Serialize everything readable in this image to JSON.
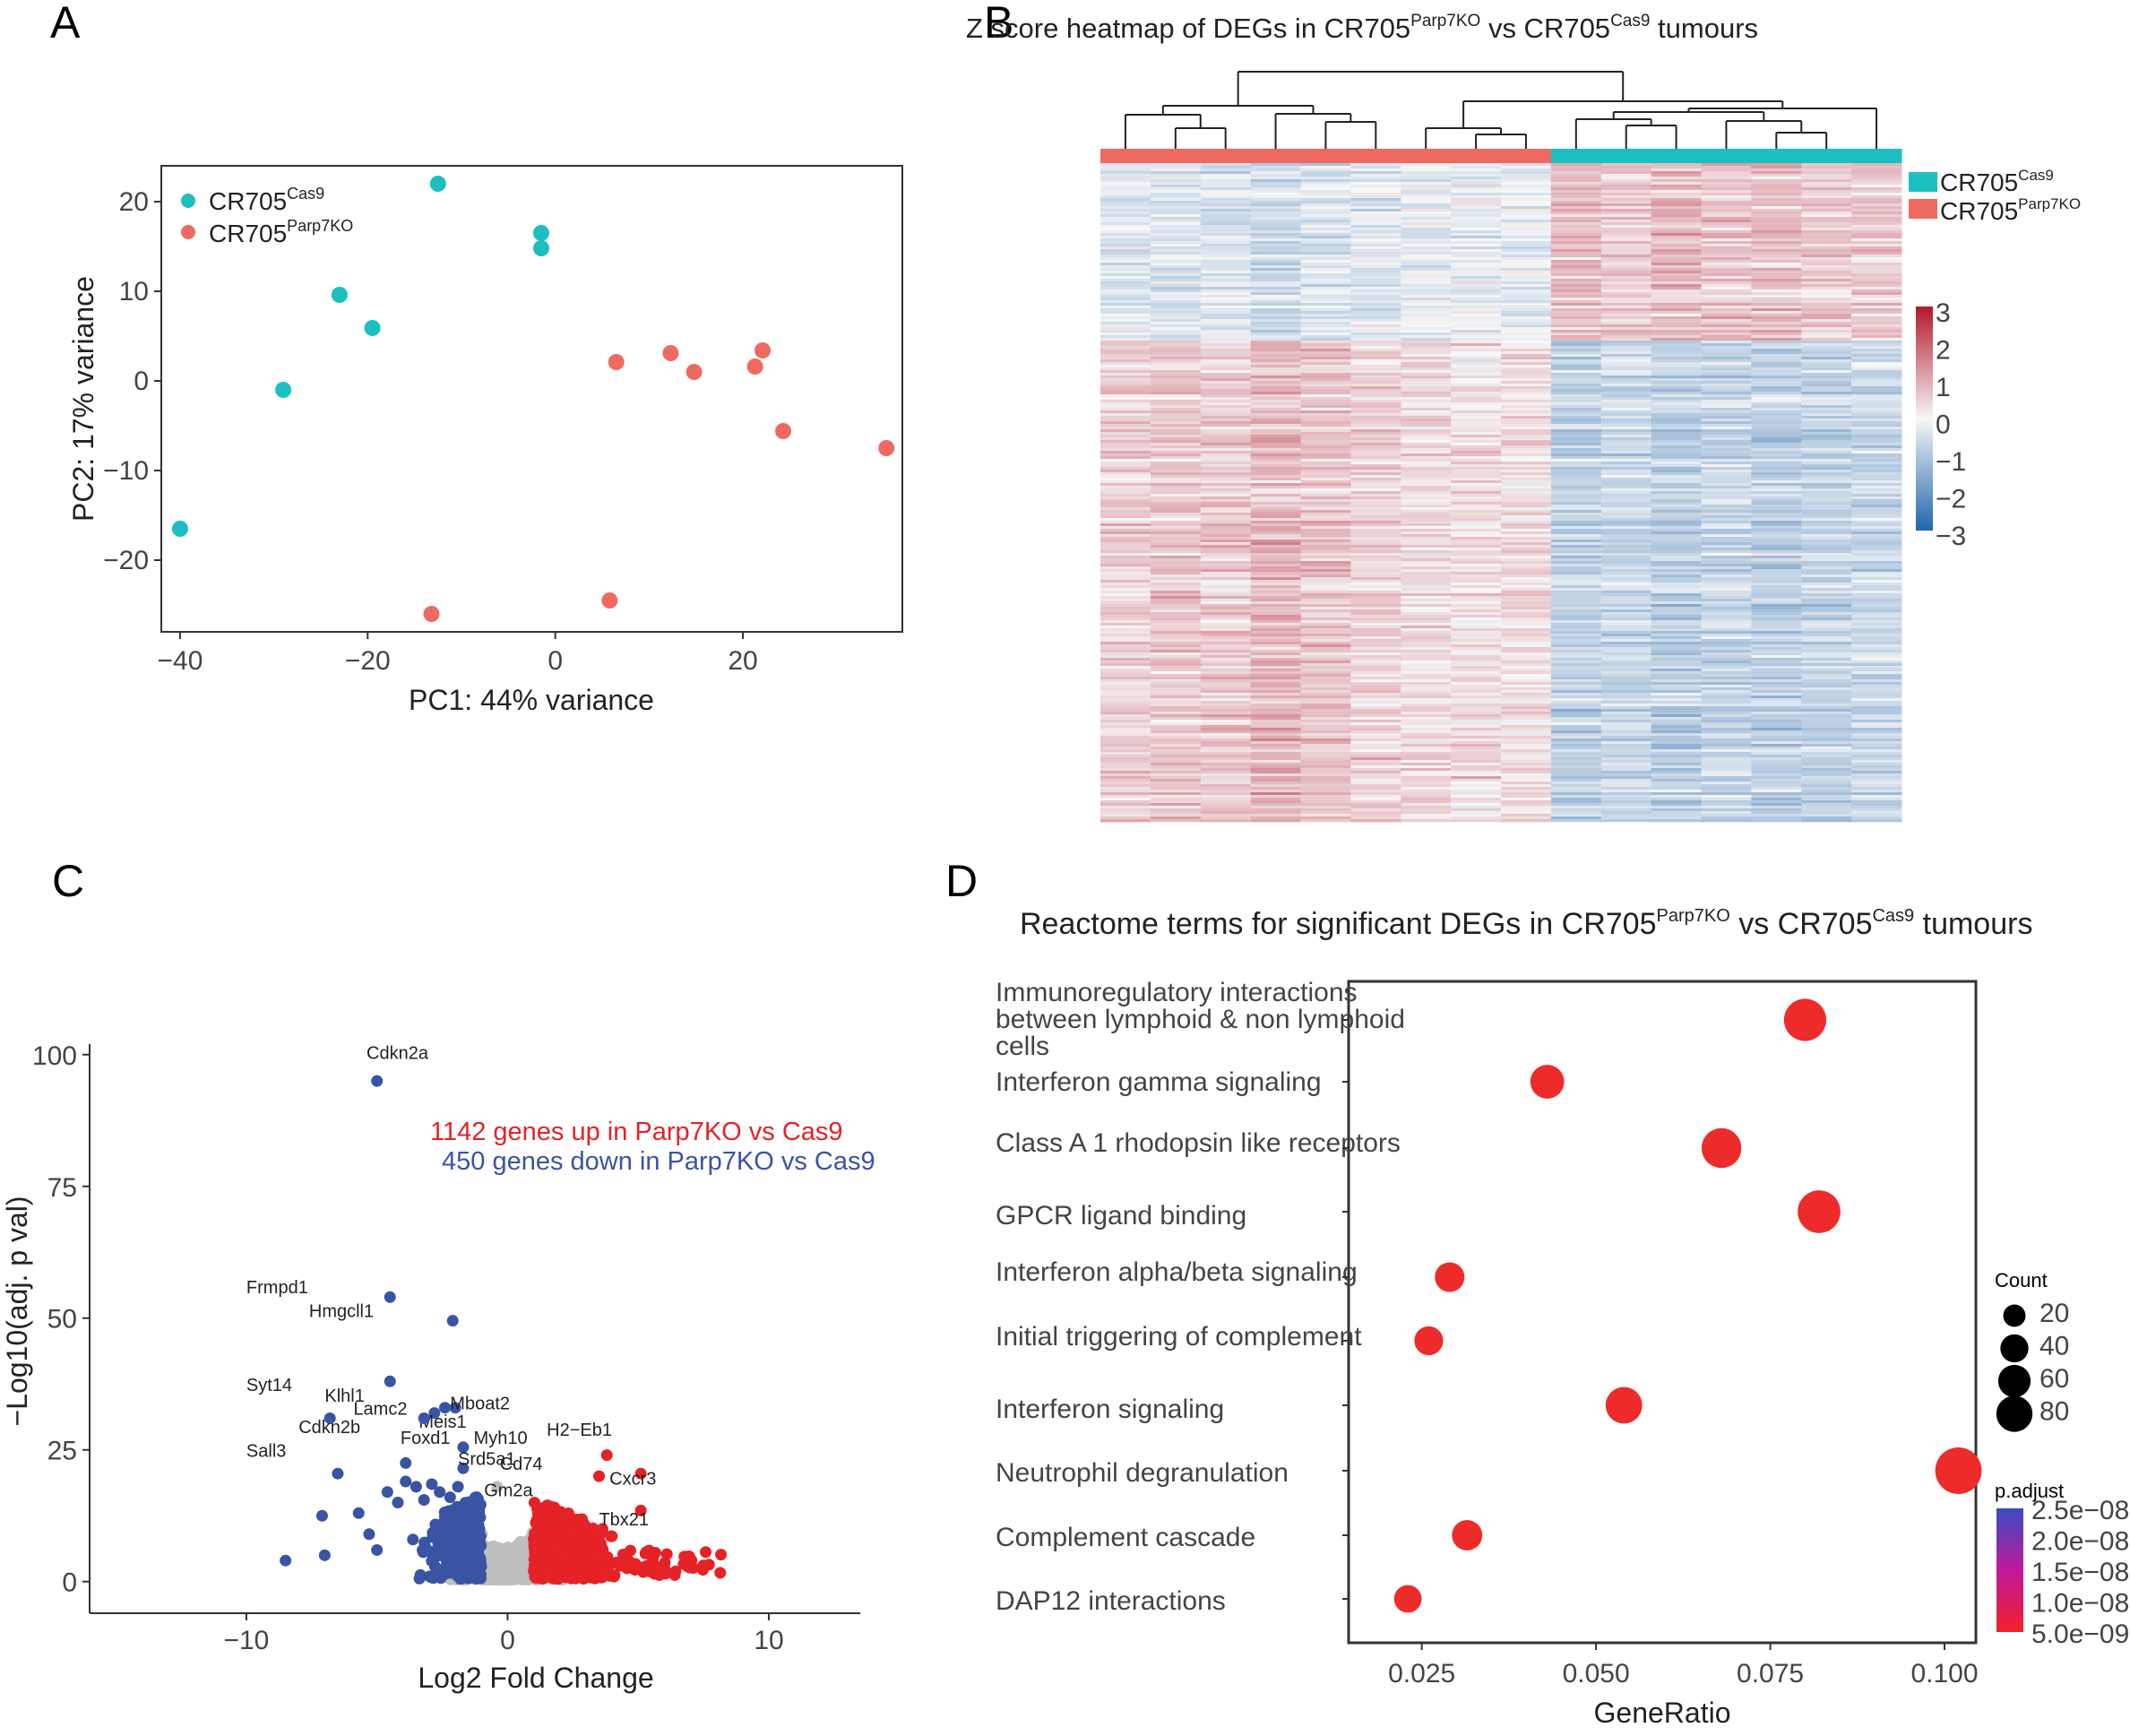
{
  "panels": {
    "A": {
      "letter": "A"
    },
    "B": {
      "letter": "B"
    },
    "C": {
      "letter": "C"
    },
    "D": {
      "letter": "D"
    }
  },
  "colors": {
    "cas9": "#1BBFBF",
    "parp7ko": "#EE6A60",
    "up": "#E52226",
    "down": "#3A54A4",
    "ns": "#BEBEBE",
    "heat_high": "#B2182B",
    "heat_mid": "#F7F7F7",
    "heat_low": "#2166AC"
  },
  "chart_data": [
    {
      "id": "A",
      "type": "scatter",
      "title": "",
      "xlabel": "PC1: 44% variance",
      "ylabel": "PC2: 17% variance",
      "xlim": [
        -42,
        37
      ],
      "ylim": [
        -28,
        24
      ],
      "xticks": [
        {
          "v": -40,
          "label": "−40"
        },
        {
          "v": -20,
          "label": "−20"
        },
        {
          "v": 0,
          "label": "0"
        },
        {
          "v": 20,
          "label": "20"
        }
      ],
      "yticks": [
        {
          "v": 20,
          "label": "20"
        },
        {
          "v": 10,
          "label": "10"
        },
        {
          "v": 0,
          "label": "0"
        },
        {
          "v": -10,
          "label": "−10"
        },
        {
          "v": -20,
          "label": "−20"
        }
      ],
      "legend": [
        {
          "base": "CR705",
          "sup": "Cas9",
          "color": "#1BBFBF"
        },
        {
          "base": "CR705",
          "sup": "Parp7KO",
          "color": "#EE6A60"
        }
      ],
      "series": [
        {
          "name": "CR705Cas9",
          "color": "#1BBFBF",
          "points": [
            [
              -12.5,
              22
            ],
            [
              -1.5,
              16.5
            ],
            [
              -1.5,
              14.8
            ],
            [
              -23,
              9.6
            ],
            [
              -19.5,
              5.9
            ],
            [
              -29,
              -1
            ],
            [
              -40,
              -16.5
            ]
          ]
        },
        {
          "name": "CR705Parp7KO",
          "color": "#EE6A60",
          "points": [
            [
              6.5,
              2.1
            ],
            [
              12.3,
              3.1
            ],
            [
              14.8,
              1
            ],
            [
              21.3,
              1.6
            ],
            [
              22.1,
              3.4
            ],
            [
              24.3,
              -5.6
            ],
            [
              35.3,
              -7.5
            ],
            [
              5.8,
              -24.5
            ],
            [
              -13.2,
              -26
            ]
          ]
        }
      ]
    },
    {
      "id": "B",
      "type": "heatmap",
      "title_base_1": "Z score heatmap of DEGs in CR705",
      "title_sup_1": "Parp7KO",
      "title_base_2": " vs CR705",
      "title_sup_2": "Cas9",
      "title_tail": " tumours",
      "columns": 16,
      "column_groups": [
        "Parp7KO",
        "Parp7KO",
        "Parp7KO",
        "Parp7KO",
        "Parp7KO",
        "Parp7KO",
        "Parp7KO",
        "Parp7KO",
        "Parp7KO",
        "Cas9",
        "Cas9",
        "Cas9",
        "Cas9",
        "Cas9",
        "Cas9",
        "Cas9"
      ],
      "row_blocks": [
        {
          "genes": 450,
          "direction": "down in Parp7KO"
        },
        {
          "genes": 1142,
          "direction": "up in Parp7KO"
        }
      ],
      "scale": {
        "min": -3,
        "max": 3,
        "labels": [
          "3",
          "2",
          "1",
          "0",
          "−1",
          "−2",
          "−3"
        ]
      },
      "legend": [
        {
          "base": "CR705",
          "sup": "Cas9",
          "color": "#1BBFBF"
        },
        {
          "base": "CR705",
          "sup": "Parp7KO",
          "color": "#EE6A60"
        }
      ]
    },
    {
      "id": "C",
      "type": "scatter",
      "subtype": "volcano",
      "xlabel": "Log2 Fold Change",
      "ylabel": "−Log10(adj. p val)",
      "xlim": [
        -16,
        13.5
      ],
      "ylim": [
        -6,
        102
      ],
      "xticks": [
        {
          "v": -10,
          "label": "−10"
        },
        {
          "v": 0,
          "label": "0"
        },
        {
          "v": 10,
          "label": "10"
        }
      ],
      "yticks": [
        {
          "v": 100,
          "label": "100"
        },
        {
          "v": 75,
          "label": "75"
        },
        {
          "v": 50,
          "label": "50"
        },
        {
          "v": 25,
          "label": "25"
        },
        {
          "v": 0,
          "label": "0"
        }
      ],
      "annotations": {
        "up_text": "1142 genes up in Parp7KO vs Cas9",
        "down_text": "450 genes down in Parp7KO vs Cas9"
      },
      "labeled_genes": [
        {
          "gene": "Cdkn2a",
          "x": -5,
          "y": 95,
          "dir": "down",
          "dx": -0.4,
          "dy": 3.5
        },
        {
          "gene": "Frmpd1",
          "x": -4.5,
          "y": 54,
          "dir": "down",
          "dx": -5.5,
          "dy": 0
        },
        {
          "gene": "Hmgcll1",
          "x": -2.1,
          "y": 49.5,
          "dir": "down",
          "dx": -5.5,
          "dy": 0
        },
        {
          "gene": "Syt14",
          "x": -4.5,
          "y": 38,
          "dir": "down",
          "dx": -5.5,
          "dy": -2.5
        },
        {
          "gene": "Lamc2",
          "x": -2.4,
          "y": 33,
          "dir": "down",
          "dx": -3.5,
          "dy": -2
        },
        {
          "gene": "Mboat2",
          "x": -2,
          "y": 33,
          "dir": "down",
          "dx": -0.2,
          "dy": -1
        },
        {
          "gene": "Klhl1",
          "x": -6.8,
          "y": 31,
          "dir": "down",
          "dx": -0.2,
          "dy": 2.5
        },
        {
          "gene": "Meis1",
          "x": -2.8,
          "y": 32,
          "dir": "down",
          "dx": -0.6,
          "dy": -3.5
        },
        {
          "gene": "Cdkn2b",
          "x": -3.2,
          "y": 31,
          "dir": "down",
          "dx": -4.8,
          "dy": -3.5
        },
        {
          "gene": "Myh10",
          "x": -1.7,
          "y": 25.5,
          "dir": "down",
          "dx": 0.4,
          "dy": 0
        },
        {
          "gene": "Foxd1",
          "x": -3.9,
          "y": 22.5,
          "dir": "down",
          "dx": -0.2,
          "dy": 3
        },
        {
          "gene": "Srd5a1",
          "x": -1.7,
          "y": 21.5,
          "dir": "down",
          "dx": -0.2,
          "dy": 0
        },
        {
          "gene": "Sall3",
          "x": -6.5,
          "y": 20.5,
          "dir": "down",
          "dx": -3.5,
          "dy": 2.5
        },
        {
          "gene": "H2−Eb1",
          "x": 3.8,
          "y": 24,
          "dir": "up",
          "dx": -2.3,
          "dy": 3
        },
        {
          "gene": "Cd74",
          "x": 3.5,
          "y": 20,
          "dir": "up",
          "dx": -3.8,
          "dy": 0.5
        },
        {
          "gene": "Cxcr3",
          "x": 5.1,
          "y": 20.5,
          "dir": "up",
          "dx": -1.2,
          "dy": -2.8
        },
        {
          "gene": "Gm2a",
          "x": -0.4,
          "y": 18,
          "dir": "ns",
          "dx": -0.5,
          "dy": -2.5
        },
        {
          "gene": "Tbx21",
          "x": 5.1,
          "y": 13.5,
          "dir": "up",
          "dx": -1.6,
          "dy": -3.5
        }
      ]
    },
    {
      "id": "D",
      "type": "scatter",
      "subtype": "dotplot",
      "title_base_1": "Reactome terms for significant DEGs in CR705",
      "title_sup_1": "Parp7KO",
      "title_base_2": " vs CR705",
      "title_sup_2": "Cas9",
      "title_tail": " tumours",
      "xlabel": "GeneRatio",
      "xlim": [
        0.0145,
        0.1045
      ],
      "xticks": [
        {
          "v": 0.025,
          "label": "0.025"
        },
        {
          "v": 0.05,
          "label": "0.050"
        },
        {
          "v": 0.075,
          "label": "0.075"
        },
        {
          "v": 0.1,
          "label": "0.100"
        }
      ],
      "terms": [
        {
          "lines": [
            "Immunoregulatory interactions",
            "between lymphoid & non lymphoid",
            "cells"
          ],
          "gene_ratio": 0.08,
          "count": 67
        },
        {
          "lines": [
            "Interferon gamma signaling"
          ],
          "gene_ratio": 0.043,
          "count": 36
        },
        {
          "lines": [
            "Class A 1 rhodopsin like receptors"
          ],
          "gene_ratio": 0.068,
          "count": 57
        },
        {
          "lines": [
            "GPCR ligand binding"
          ],
          "gene_ratio": 0.082,
          "count": 69
        },
        {
          "lines": [
            "Interferon alpha/beta signaling"
          ],
          "gene_ratio": 0.029,
          "count": 24
        },
        {
          "lines": [
            "Initial triggering of  complement"
          ],
          "gene_ratio": 0.026,
          "count": 22
        },
        {
          "lines": [
            "Interferon signaling"
          ],
          "gene_ratio": 0.054,
          "count": 45
        },
        {
          "lines": [
            "Neutrophil degranulation"
          ],
          "gene_ratio": 0.102,
          "count": 86
        },
        {
          "lines": [
            "Complement cascade"
          ],
          "gene_ratio": 0.0315,
          "count": 26
        },
        {
          "lines": [
            "DAP12 interactions"
          ],
          "gene_ratio": 0.023,
          "count": 19
        }
      ],
      "count_legend": {
        "title": "Count",
        "values": [
          20,
          40,
          60,
          80
        ],
        "labels": [
          "20",
          "40",
          "60",
          "80"
        ]
      },
      "padj_legend": {
        "title": "p.adjust",
        "labels": [
          "2.5e−08",
          "2.0e−08",
          "1.5e−08",
          "1.0e−08",
          "5.0e−09"
        ]
      }
    }
  ]
}
